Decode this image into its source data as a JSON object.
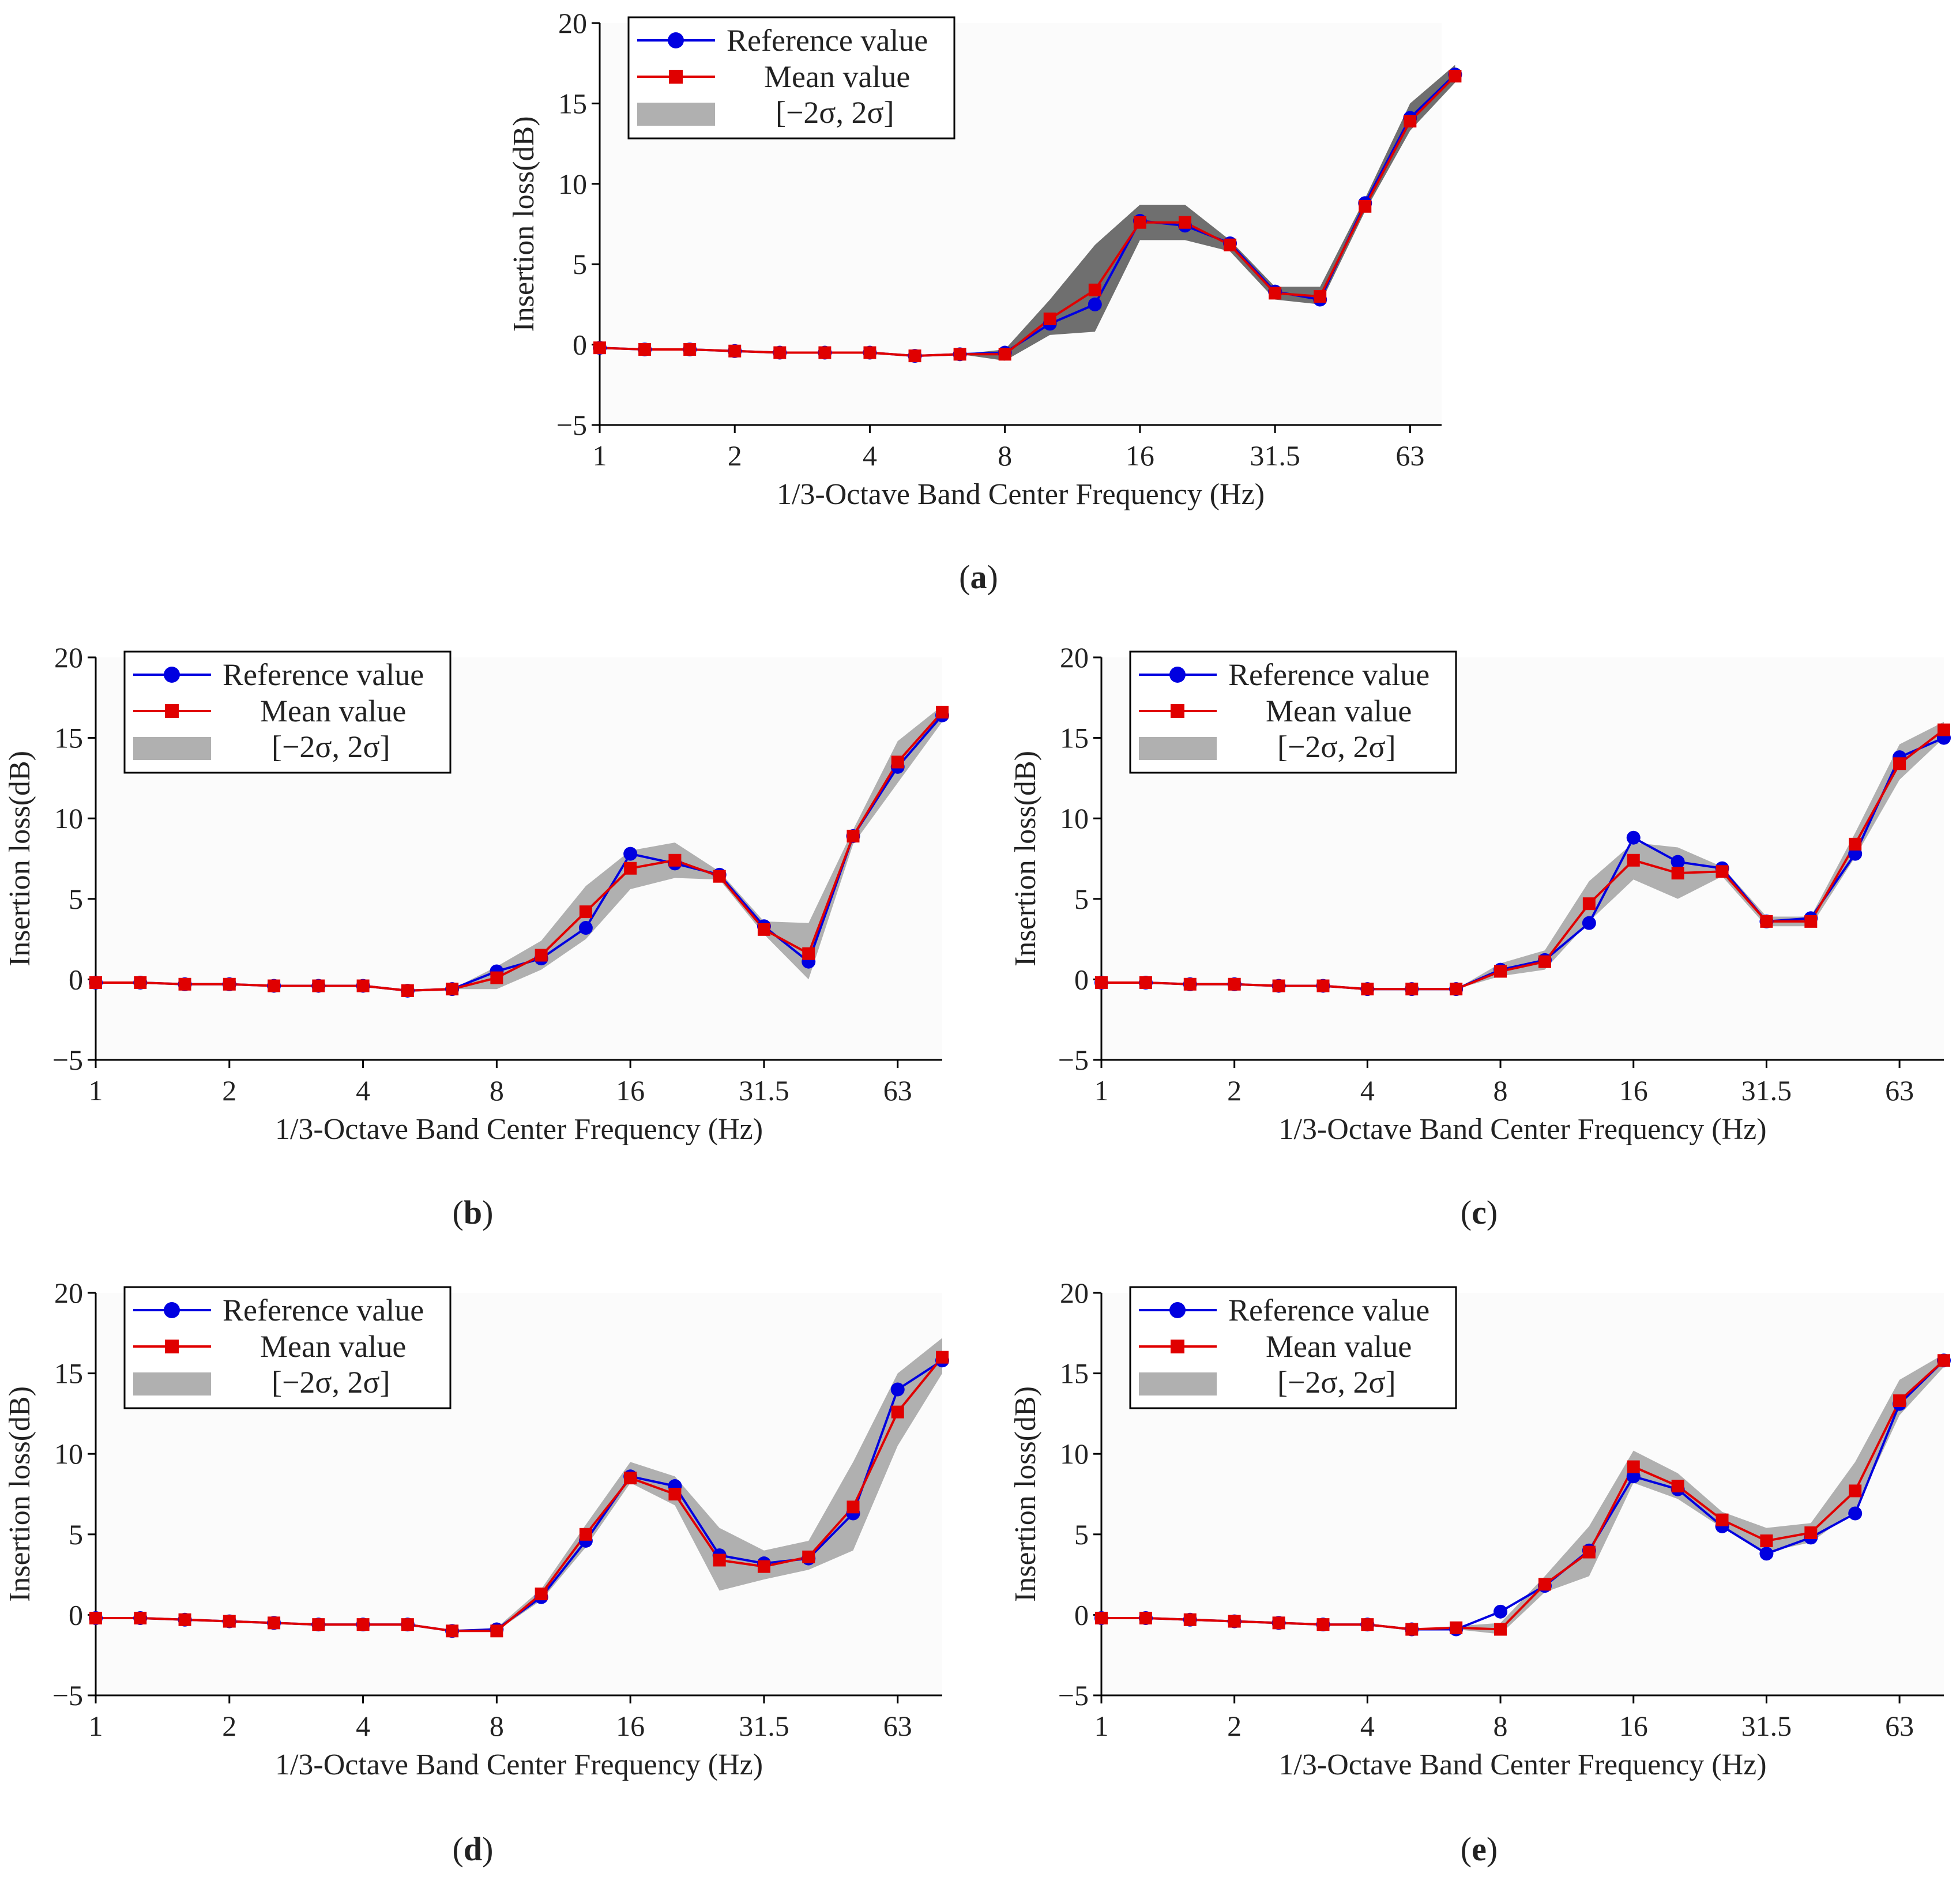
{
  "colors": {
    "reference": "#0000e0",
    "mean": "#e00000",
    "band_light": "#b0b0b0",
    "band_dark": "#6f6f6f",
    "axis": "#000000"
  },
  "shared": {
    "xlabel": "1/3-Octave Band Center Frequency (Hz)",
    "ylabel": "Insertion loss(dB)",
    "x_tick_labels": [
      "1",
      "2",
      "4",
      "8",
      "16",
      "31.5",
      "63"
    ],
    "y_ticks": [
      "20",
      "15",
      "10",
      "5",
      "0",
      "−5"
    ],
    "legend": {
      "reference": "Reference value",
      "mean": "Mean value",
      "band": "[−2σ, 2σ]"
    }
  },
  "chart_data": [
    {
      "id": "a",
      "type": "line",
      "label_open": "(",
      "label_letter": "a",
      "label_close": ")",
      "title": "",
      "band_style": "dark",
      "xlabel": "1/3-Octave Band Center Frequency (Hz)",
      "ylabel": "Insertion loss(dB)",
      "ylim": [
        -5,
        20
      ],
      "x_band_index": [
        0,
        1,
        2,
        3,
        4,
        5,
        6,
        7,
        8,
        9,
        10,
        11,
        12,
        13,
        14,
        15,
        16,
        17,
        18,
        19
      ],
      "x_ticks": {
        "1": 0,
        "2": 3,
        "4": 6,
        "8": 9,
        "16": 12,
        "31.5": 15,
        "63": 18
      },
      "series": [
        {
          "name": "Reference value",
          "values": [
            -0.2,
            -0.3,
            -0.3,
            -0.4,
            -0.5,
            -0.5,
            -0.5,
            -0.7,
            -0.6,
            -0.5,
            1.3,
            2.5,
            7.7,
            7.4,
            6.3,
            3.3,
            2.8,
            8.8,
            14.1,
            16.8
          ]
        },
        {
          "name": "Mean value",
          "values": [
            -0.2,
            -0.3,
            -0.3,
            -0.4,
            -0.5,
            -0.5,
            -0.5,
            -0.7,
            -0.6,
            -0.6,
            1.6,
            3.4,
            7.6,
            7.6,
            6.2,
            3.2,
            3.0,
            8.6,
            13.9,
            16.7
          ]
        }
      ],
      "band": {
        "name": "[−2σ, 2σ]",
        "lower": [
          -0.2,
          -0.3,
          -0.3,
          -0.4,
          -0.5,
          -0.5,
          -0.5,
          -0.7,
          -0.6,
          -1.0,
          0.6,
          0.8,
          6.5,
          6.5,
          5.8,
          2.8,
          2.5,
          8.3,
          13.3,
          16.3
        ],
        "upper": [
          -0.2,
          -0.3,
          -0.3,
          -0.4,
          -0.5,
          -0.5,
          -0.5,
          -0.7,
          -0.6,
          -0.3,
          2.8,
          6.2,
          8.7,
          8.7,
          6.5,
          3.6,
          3.6,
          9.1,
          15.0,
          17.4
        ]
      }
    },
    {
      "id": "b",
      "type": "line",
      "label_open": "(",
      "label_letter": "b",
      "label_close": ")",
      "title": "",
      "band_style": "light",
      "xlabel": "1/3-Octave Band Center Frequency (Hz)",
      "ylabel": "Insertion loss(dB)",
      "ylim": [
        -5,
        20
      ],
      "x_band_index": [
        0,
        1,
        2,
        3,
        4,
        5,
        6,
        7,
        8,
        9,
        10,
        11,
        12,
        13,
        14,
        15,
        16,
        17,
        18,
        19
      ],
      "x_ticks": {
        "1": 0,
        "2": 3,
        "4": 6,
        "8": 9,
        "16": 12,
        "31.5": 15,
        "63": 18
      },
      "series": [
        {
          "name": "Reference value",
          "values": [
            -0.2,
            -0.2,
            -0.3,
            -0.3,
            -0.4,
            -0.4,
            -0.4,
            -0.7,
            -0.6,
            0.5,
            1.3,
            3.2,
            7.8,
            7.2,
            6.5,
            3.3,
            1.1,
            8.9,
            13.2,
            16.4
          ]
        },
        {
          "name": "Mean value",
          "values": [
            -0.2,
            -0.2,
            -0.3,
            -0.3,
            -0.4,
            -0.4,
            -0.4,
            -0.7,
            -0.6,
            0.1,
            1.5,
            4.2,
            6.9,
            7.4,
            6.4,
            3.1,
            1.6,
            8.9,
            13.5,
            16.6
          ]
        }
      ],
      "band": {
        "name": "[−2σ, 2σ]",
        "lower": [
          -0.2,
          -0.2,
          -0.3,
          -0.3,
          -0.4,
          -0.4,
          -0.4,
          -0.7,
          -0.6,
          -0.6,
          0.6,
          2.5,
          5.6,
          6.3,
          6.2,
          2.8,
          0.0,
          8.4,
          12.2,
          16.0
        ],
        "upper": [
          -0.2,
          -0.2,
          -0.3,
          -0.3,
          -0.4,
          -0.4,
          -0.4,
          -0.7,
          -0.6,
          0.8,
          2.4,
          5.8,
          8.0,
          8.5,
          6.7,
          3.6,
          3.5,
          9.3,
          14.8,
          17.0
        ]
      }
    },
    {
      "id": "c",
      "type": "line",
      "label_open": "(",
      "label_letter": "c",
      "label_close": ")",
      "title": "",
      "band_style": "light",
      "xlabel": "1/3-Octave Band Center Frequency (Hz)",
      "ylabel": "Insertion loss(dB)",
      "ylim": [
        -5,
        20
      ],
      "x_band_index": [
        0,
        1,
        2,
        3,
        4,
        5,
        6,
        7,
        8,
        9,
        10,
        11,
        12,
        13,
        14,
        15,
        16,
        17,
        18,
        19
      ],
      "x_ticks": {
        "1": 0,
        "2": 3,
        "4": 6,
        "8": 9,
        "16": 12,
        "31.5": 15,
        "63": 18
      },
      "series": [
        {
          "name": "Reference value",
          "values": [
            -0.2,
            -0.2,
            -0.3,
            -0.3,
            -0.4,
            -0.4,
            -0.6,
            -0.6,
            -0.6,
            0.6,
            1.2,
            3.5,
            8.8,
            7.3,
            6.9,
            3.6,
            3.8,
            7.8,
            13.8,
            15.0
          ]
        },
        {
          "name": "Mean value",
          "values": [
            -0.2,
            -0.2,
            -0.3,
            -0.3,
            -0.4,
            -0.4,
            -0.6,
            -0.6,
            -0.6,
            0.5,
            1.1,
            4.7,
            7.4,
            6.6,
            6.7,
            3.6,
            3.6,
            8.4,
            13.4,
            15.5
          ]
        }
      ],
      "band": {
        "name": "[−2σ, 2σ]",
        "lower": [
          -0.2,
          -0.2,
          -0.3,
          -0.3,
          -0.4,
          -0.4,
          -0.6,
          -0.6,
          -0.6,
          0.2,
          0.6,
          3.6,
          6.2,
          5.0,
          6.4,
          3.3,
          3.3,
          7.6,
          12.4,
          15.0
        ],
        "upper": [
          -0.2,
          -0.2,
          -0.3,
          -0.3,
          -0.4,
          -0.4,
          -0.6,
          -0.6,
          -0.6,
          1.0,
          1.8,
          6.1,
          8.5,
          8.2,
          7.0,
          3.9,
          3.9,
          9.1,
          14.6,
          16.0
        ]
      }
    },
    {
      "id": "d",
      "type": "line",
      "label_open": "(",
      "label_letter": "d",
      "label_close": ")",
      "title": "",
      "band_style": "light",
      "xlabel": "1/3-Octave Band Center Frequency (Hz)",
      "ylabel": "Insertion loss(dB)",
      "ylim": [
        -5,
        20
      ],
      "x_band_index": [
        0,
        1,
        2,
        3,
        4,
        5,
        6,
        7,
        8,
        9,
        10,
        11,
        12,
        13,
        14,
        15,
        16,
        17,
        18,
        19
      ],
      "x_ticks": {
        "1": 0,
        "2": 3,
        "4": 6,
        "8": 9,
        "16": 12,
        "31.5": 15,
        "63": 18
      },
      "series": [
        {
          "name": "Reference value",
          "values": [
            -0.2,
            -0.2,
            -0.3,
            -0.4,
            -0.5,
            -0.6,
            -0.6,
            -0.6,
            -1.0,
            -0.9,
            1.1,
            4.6,
            8.6,
            8.0,
            3.7,
            3.2,
            3.5,
            6.3,
            14.0,
            15.8
          ]
        },
        {
          "name": "Mean value",
          "values": [
            -0.2,
            -0.2,
            -0.3,
            -0.4,
            -0.5,
            -0.6,
            -0.6,
            -0.6,
            -1.0,
            -1.0,
            1.3,
            5.0,
            8.5,
            7.5,
            3.4,
            3.0,
            3.6,
            6.7,
            12.6,
            16.0
          ]
        }
      ],
      "band": {
        "name": "[−2σ, 2σ]",
        "lower": [
          -0.2,
          -0.2,
          -0.3,
          -0.4,
          -0.5,
          -0.6,
          -0.6,
          -0.6,
          -1.0,
          -1.0,
          0.9,
          4.2,
          8.2,
          6.8,
          1.5,
          2.2,
          2.8,
          4.0,
          10.5,
          15.0
        ],
        "upper": [
          -0.2,
          -0.2,
          -0.3,
          -0.4,
          -0.5,
          -0.6,
          -0.6,
          -0.6,
          -1.0,
          -0.8,
          1.6,
          5.6,
          9.5,
          8.6,
          5.4,
          4.0,
          4.6,
          9.5,
          15.0,
          17.2
        ]
      }
    },
    {
      "id": "e",
      "type": "line",
      "label_open": "(",
      "label_letter": "e",
      "label_close": ")",
      "title": "",
      "band_style": "light",
      "xlabel": "1/3-Octave Band Center Frequency (Hz)",
      "ylabel": "Insertion loss(dB)",
      "ylim": [
        -5,
        20
      ],
      "x_band_index": [
        0,
        1,
        2,
        3,
        4,
        5,
        6,
        7,
        8,
        9,
        10,
        11,
        12,
        13,
        14,
        15,
        16,
        17,
        18,
        19
      ],
      "x_ticks": {
        "1": 0,
        "2": 3,
        "4": 6,
        "8": 9,
        "16": 12,
        "31.5": 15,
        "63": 18
      },
      "series": [
        {
          "name": "Reference value",
          "values": [
            -0.2,
            -0.2,
            -0.3,
            -0.4,
            -0.5,
            -0.6,
            -0.6,
            -0.9,
            -0.9,
            0.2,
            1.8,
            4.0,
            8.6,
            7.8,
            5.5,
            3.8,
            4.8,
            6.3,
            13.1,
            15.8
          ]
        },
        {
          "name": "Mean value",
          "values": [
            -0.2,
            -0.2,
            -0.3,
            -0.4,
            -0.5,
            -0.6,
            -0.6,
            -0.9,
            -0.8,
            -0.9,
            1.9,
            3.9,
            9.2,
            8.0,
            5.9,
            4.6,
            5.1,
            7.7,
            13.3,
            15.8
          ]
        }
      ],
      "band": {
        "name": "[−2σ, 2σ]",
        "lower": [
          -0.2,
          -0.2,
          -0.3,
          -0.4,
          -0.5,
          -0.6,
          -0.6,
          -0.9,
          -0.9,
          -1.2,
          1.4,
          2.4,
          8.2,
          7.2,
          5.4,
          3.9,
          4.5,
          6.5,
          12.4,
          15.4
        ],
        "upper": [
          -0.2,
          -0.2,
          -0.3,
          -0.4,
          -0.5,
          -0.6,
          -0.6,
          -0.9,
          -0.7,
          -0.5,
          2.4,
          5.5,
          10.2,
          8.8,
          6.4,
          5.4,
          5.7,
          9.5,
          14.6,
          16.2
        ]
      }
    }
  ]
}
